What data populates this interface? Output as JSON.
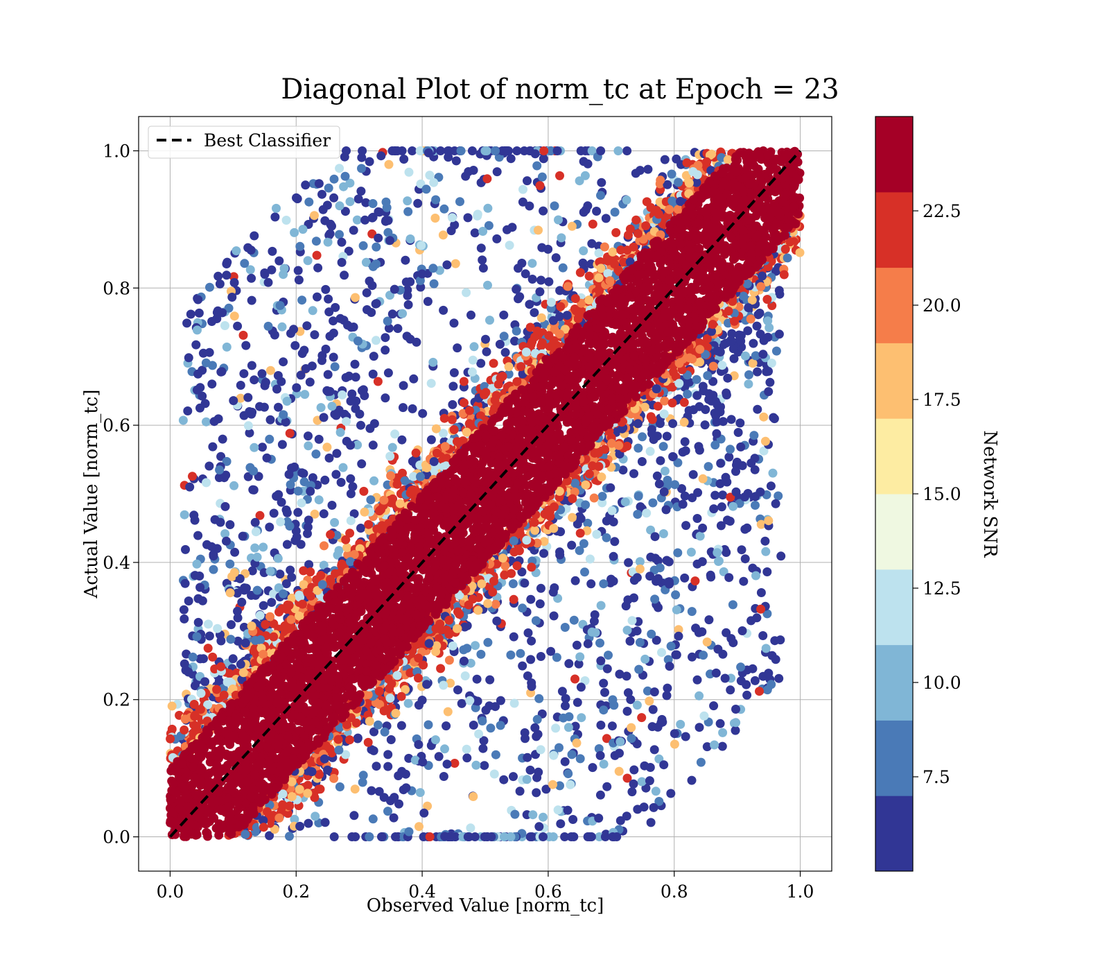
{
  "chart_data": {
    "type": "scatter",
    "title": "Diagonal Plot of norm_tc at Epoch = 23",
    "xlabel": "Observed Value [norm_tc]",
    "ylabel": "Actual Value [norm_tc]",
    "xlim": [
      -0.05,
      1.05
    ],
    "ylim": [
      -0.05,
      1.05
    ],
    "xticks": [
      "0.0",
      "0.2",
      "0.4",
      "0.6",
      "0.8",
      "1.0"
    ],
    "yticks": [
      "0.0",
      "0.2",
      "0.4",
      "0.6",
      "0.8",
      "1.0"
    ],
    "grid": true,
    "legend": {
      "position": "top-left",
      "entries": [
        {
          "label": "Best Classifier",
          "style": "dashed",
          "color": "#000000"
        }
      ]
    },
    "reference_line": {
      "x": [
        0.0,
        1.0
      ],
      "y": [
        0.0,
        1.0
      ],
      "style": "dashed",
      "color": "#000000"
    },
    "colorbar": {
      "label": "Network SNR",
      "range": [
        5.0,
        25.0
      ],
      "ticks": [
        "7.5",
        "10.0",
        "12.5",
        "15.0",
        "17.5",
        "20.0",
        "22.5"
      ],
      "colors": [
        "#313695",
        "#4a7ab7",
        "#80b6d6",
        "#bde2ee",
        "#eff8e1",
        "#fdeca2",
        "#fdbf71",
        "#f57d4a",
        "#d73027",
        "#a50026"
      ]
    },
    "distribution": {
      "core_band_half_width": 0.1,
      "core_color": "#a50026",
      "scatter_outside_band": true,
      "outlier_color": "#313695"
    }
  }
}
